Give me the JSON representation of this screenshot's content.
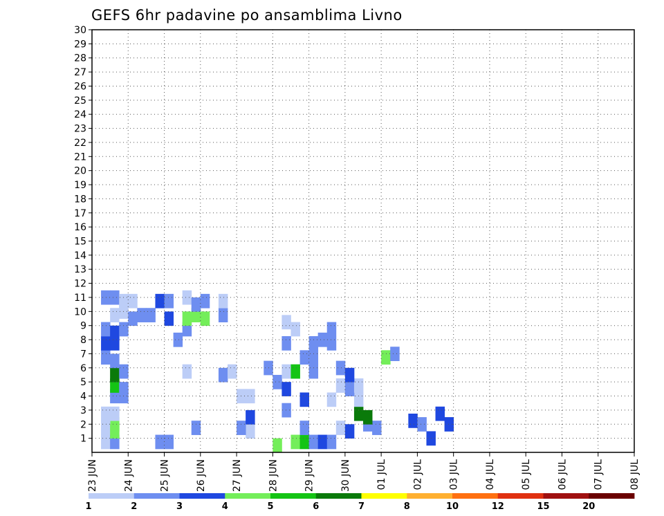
{
  "chart_data": {
    "type": "heatmap",
    "title": "GEFS 6hr padavine po ansamblima Livno",
    "x_tick_labels": [
      "23 JUN",
      "24 JUN",
      "25 JUN",
      "26 JUN",
      "27 JUN",
      "28 JUN",
      "29 JUN",
      "30 JUN",
      "01 JUL",
      "02 JUL",
      "03 JUL",
      "04 JUL",
      "05 JUL",
      "06 JUL",
      "07 JUL",
      "08 JUL"
    ],
    "y_tick_labels": [
      "1",
      "2",
      "3",
      "4",
      "5",
      "6",
      "7",
      "8",
      "9",
      "10",
      "11",
      "12",
      "13",
      "14",
      "15",
      "16",
      "17",
      "18",
      "19",
      "20",
      "21",
      "22",
      "23",
      "24",
      "25",
      "26",
      "27",
      "28",
      "29",
      "30"
    ],
    "x_range": [
      "23 JUN",
      "08 JUL"
    ],
    "y_range": [
      0,
      30
    ],
    "grid": true,
    "colorbar": {
      "labels": [
        "1",
        "2",
        "3",
        "4",
        "5",
        "6",
        "7",
        "8",
        "10",
        "12",
        "15",
        "20"
      ],
      "colors": [
        "#bccdf7",
        "#6e8ef0",
        "#1f48e0",
        "#74ee5a",
        "#14c414",
        "#0a7a0a",
        "#ffff00",
        "#ffb030",
        "#ff7010",
        "#e03010",
        "#a01010",
        "#6a0000"
      ]
    },
    "cells": [
      [
        1,
        1,
        0,
        1
      ],
      [
        2,
        1,
        1,
        1
      ],
      [
        2,
        2,
        3,
        2
      ],
      [
        7,
        1,
        1,
        1
      ],
      [
        8,
        1,
        1,
        1
      ],
      [
        17,
        1,
        0,
        4
      ],
      [
        20,
        1,
        3,
        0
      ],
      [
        22,
        1,
        3,
        1
      ],
      [
        23,
        1,
        4,
        1
      ],
      [
        24,
        1,
        1,
        1
      ],
      [
        25,
        1,
        2,
        1
      ],
      [
        26,
        1,
        1,
        1
      ],
      [
        37,
        1,
        2,
        2
      ],
      [
        1,
        2,
        0,
        1
      ],
      [
        2,
        2,
        3,
        0
      ],
      [
        11,
        2,
        1,
        1
      ],
      [
        16,
        2,
        1,
        1
      ],
      [
        23,
        2,
        1,
        1
      ],
      [
        27,
        2,
        0,
        1
      ],
      [
        28,
        2,
        2,
        0
      ],
      [
        30,
        2,
        1,
        2
      ],
      [
        31,
        2,
        1,
        1
      ],
      [
        35,
        2,
        2,
        3
      ],
      [
        36,
        2,
        1,
        2
      ],
      [
        38,
        2,
        2,
        5
      ],
      [
        39,
        2,
        2,
        2
      ],
      [
        1,
        3,
        0,
        1
      ],
      [
        2,
        3,
        0,
        1
      ],
      [
        17,
        3,
        2,
        0
      ],
      [
        21,
        3,
        1,
        2
      ],
      [
        29,
        3,
        5,
        1
      ],
      [
        30,
        3,
        5,
        0
      ],
      [
        2,
        4,
        1,
        2
      ],
      [
        3,
        4,
        1,
        2
      ],
      [
        16,
        4,
        0,
        2
      ],
      [
        17,
        4,
        0,
        2
      ],
      [
        23,
        4,
        2,
        1
      ],
      [
        26,
        4,
        0,
        1
      ],
      [
        29,
        4,
        0,
        1
      ],
      [
        2,
        5,
        4,
        1
      ],
      [
        3,
        5,
        1,
        0
      ],
      [
        20,
        5,
        1,
        2
      ],
      [
        21,
        5,
        2,
        0
      ],
      [
        27,
        5,
        0,
        1
      ],
      [
        28,
        5,
        1,
        0
      ],
      [
        29,
        5,
        0,
        1
      ],
      [
        2,
        6,
        5,
        0
      ],
      [
        3,
        6,
        1,
        1
      ],
      [
        10,
        6,
        0,
        1
      ],
      [
        14,
        6,
        1,
        0
      ],
      [
        15,
        6,
        0,
        1
      ],
      [
        19,
        6,
        1,
        2
      ],
      [
        21,
        6,
        0,
        1
      ],
      [
        22,
        6,
        4,
        1
      ],
      [
        24,
        6,
        1,
        1
      ],
      [
        27,
        6,
        1,
        2
      ],
      [
        28,
        6,
        2,
        0
      ],
      [
        1,
        7,
        1,
        1
      ],
      [
        2,
        7,
        1,
        0
      ],
      [
        23,
        7,
        1,
        1
      ],
      [
        24,
        7,
        1,
        1
      ],
      [
        32,
        7,
        3,
        1
      ],
      [
        33,
        7,
        1,
        2
      ],
      [
        1,
        8,
        2,
        1
      ],
      [
        2,
        8,
        2,
        1
      ],
      [
        9,
        8,
        1,
        2
      ],
      [
        21,
        8,
        1,
        1
      ],
      [
        24,
        8,
        1,
        1
      ],
      [
        25,
        8,
        1,
        2
      ],
      [
        26,
        8,
        1,
        1
      ],
      [
        1,
        9,
        1,
        1
      ],
      [
        2,
        9,
        2,
        0
      ],
      [
        3,
        9,
        1,
        1
      ],
      [
        10,
        9,
        1,
        1
      ],
      [
        21,
        9,
        0,
        3
      ],
      [
        22,
        9,
        0,
        1
      ],
      [
        26,
        9,
        1,
        1
      ],
      [
        2,
        10,
        0,
        1
      ],
      [
        3,
        10,
        0,
        2
      ],
      [
        4,
        10,
        1,
        0
      ],
      [
        5,
        10,
        1,
        1
      ],
      [
        6,
        10,
        1,
        1
      ],
      [
        8,
        10,
        2,
        0
      ],
      [
        10,
        10,
        3,
        0
      ],
      [
        11,
        10,
        3,
        1
      ],
      [
        12,
        10,
        3,
        0
      ],
      [
        14,
        10,
        1,
        1
      ],
      [
        1,
        11,
        1,
        2
      ],
      [
        2,
        11,
        1,
        2
      ],
      [
        3,
        11,
        0,
        1
      ],
      [
        4,
        11,
        0,
        1
      ],
      [
        7,
        11,
        2,
        1
      ],
      [
        8,
        11,
        1,
        1
      ],
      [
        10,
        11,
        0,
        2
      ],
      [
        11,
        11,
        1,
        0
      ],
      [
        12,
        11,
        1,
        1
      ],
      [
        14,
        11,
        0,
        1
      ]
    ]
  }
}
